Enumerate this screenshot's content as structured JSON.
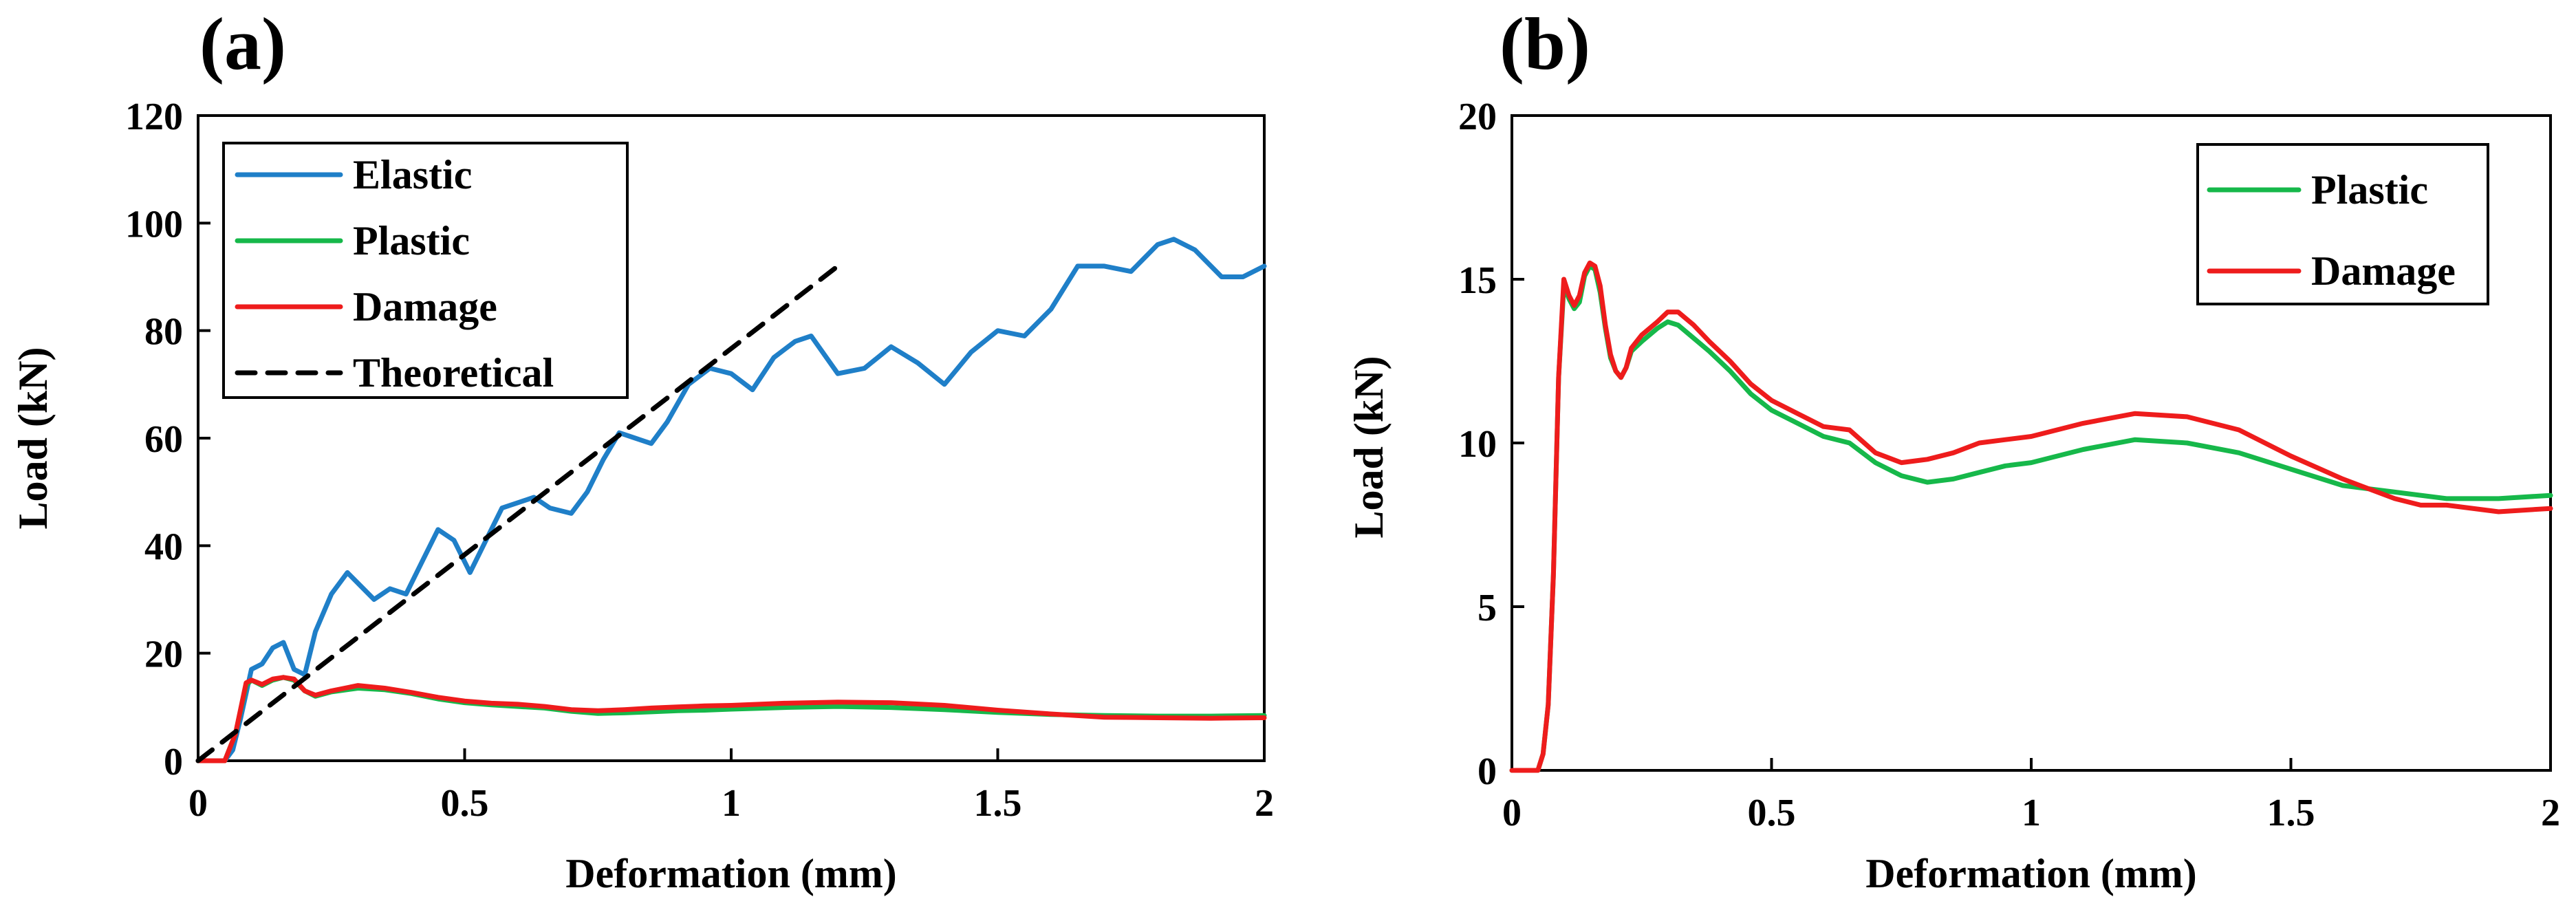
{
  "colors": {
    "elastic": "#1f7fc8",
    "plastic": "#16b84a",
    "damage": "#ee1c1c",
    "theoretical": "#000000"
  },
  "chart_data": [
    {
      "panel": "(a)",
      "type": "line",
      "xlabel": "Deformation (mm)",
      "ylabel": "Load (kN)",
      "xlim": [
        0,
        2
      ],
      "ylim": [
        0,
        120
      ],
      "xticks": [
        0,
        0.5,
        1,
        1.5,
        2
      ],
      "xtick_labels": [
        "0",
        "0.5",
        "1",
        "1.5",
        "2"
      ],
      "yticks": [
        0,
        20,
        40,
        60,
        80,
        100,
        120
      ],
      "ytick_labels": [
        "0",
        "20",
        "40",
        "60",
        "80",
        "100",
        "120"
      ],
      "legend_position": "top-left",
      "series": [
        {
          "name": "Elastic",
          "color_key": "elastic",
          "dash": false,
          "x": [
            0,
            0.05,
            0.065,
            0.08,
            0.1,
            0.12,
            0.14,
            0.16,
            0.18,
            0.2,
            0.22,
            0.25,
            0.28,
            0.3,
            0.33,
            0.36,
            0.39,
            0.42,
            0.45,
            0.48,
            0.51,
            0.54,
            0.57,
            0.6,
            0.63,
            0.66,
            0.7,
            0.73,
            0.76,
            0.79,
            0.82,
            0.85,
            0.88,
            0.92,
            0.96,
            1.0,
            1.04,
            1.08,
            1.12,
            1.15,
            1.2,
            1.25,
            1.3,
            1.35,
            1.4,
            1.45,
            1.5,
            1.55,
            1.6,
            1.65,
            1.7,
            1.75,
            1.8,
            1.83,
            1.87,
            1.92,
            1.96,
            2.0
          ],
          "y": [
            0,
            0,
            2,
            8,
            17,
            18,
            21,
            22,
            17,
            16,
            24,
            31,
            35,
            33,
            30,
            32,
            31,
            37,
            43,
            41,
            35,
            41,
            47,
            48,
            49,
            47,
            46,
            50,
            56,
            61,
            60,
            59,
            63,
            70,
            73,
            72,
            69,
            75,
            78,
            79,
            72,
            73,
            77,
            74,
            70,
            76,
            80,
            79,
            84,
            92,
            92,
            91,
            96,
            97,
            95,
            90,
            90,
            92
          ]
        },
        {
          "name": "Plastic",
          "color_key": "plastic",
          "dash": false,
          "x": [
            0,
            0.05,
            0.07,
            0.09,
            0.1,
            0.12,
            0.14,
            0.16,
            0.18,
            0.2,
            0.22,
            0.25,
            0.3,
            0.35,
            0.4,
            0.45,
            0.5,
            0.55,
            0.6,
            0.65,
            0.7,
            0.75,
            0.8,
            0.85,
            0.9,
            0.95,
            1.0,
            1.1,
            1.2,
            1.3,
            1.4,
            1.5,
            1.6,
            1.7,
            1.8,
            1.9,
            2.0
          ],
          "y": [
            0,
            0,
            5,
            14,
            15,
            14,
            15,
            15.5,
            15,
            13,
            12,
            12.8,
            13.5,
            13.2,
            12.5,
            11.5,
            10.8,
            10.4,
            10.1,
            9.8,
            9.2,
            8.8,
            8.9,
            9.1,
            9.3,
            9.4,
            9.6,
            9.9,
            10.1,
            9.9,
            9.5,
            9.0,
            8.6,
            8.4,
            8.3,
            8.3,
            8.4
          ]
        },
        {
          "name": "Damage",
          "color_key": "damage",
          "dash": false,
          "x": [
            0,
            0.05,
            0.07,
            0.09,
            0.1,
            0.12,
            0.14,
            0.16,
            0.18,
            0.2,
            0.22,
            0.25,
            0.3,
            0.35,
            0.4,
            0.45,
            0.5,
            0.55,
            0.6,
            0.65,
            0.7,
            0.75,
            0.8,
            0.85,
            0.9,
            0.95,
            1.0,
            1.1,
            1.2,
            1.3,
            1.4,
            1.5,
            1.6,
            1.7,
            1.8,
            1.9,
            2.0
          ],
          "y": [
            0,
            0,
            5,
            14.5,
            15,
            14.2,
            15.2,
            15.5,
            15.2,
            13,
            12.2,
            13,
            14,
            13.5,
            12.7,
            11.8,
            11.1,
            10.7,
            10.5,
            10.1,
            9.5,
            9.3,
            9.5,
            9.8,
            10.0,
            10.2,
            10.3,
            10.7,
            10.9,
            10.8,
            10.3,
            9.4,
            8.7,
            8.1,
            8.0,
            7.9,
            8.0
          ]
        },
        {
          "name": "Theoretical",
          "color_key": "theoretical",
          "dash": true,
          "x": [
            0,
            1.2
          ],
          "y": [
            0,
            92
          ]
        }
      ]
    },
    {
      "panel": "(b)",
      "type": "line",
      "xlabel": "Deformation (mm)",
      "ylabel": "Load (kN)",
      "xlim": [
        0,
        2
      ],
      "ylim": [
        0,
        20
      ],
      "xticks": [
        0,
        0.5,
        1,
        1.5,
        2
      ],
      "xtick_labels": [
        "0",
        "0.5",
        "1",
        "1.5",
        "2"
      ],
      "yticks": [
        0,
        5,
        10,
        15,
        20
      ],
      "ytick_labels": [
        "0",
        "5",
        "10",
        "15",
        "20"
      ],
      "legend_position": "top-right",
      "series": [
        {
          "name": "Plastic",
          "color_key": "plastic",
          "dash": false,
          "x": [
            0,
            0.05,
            0.06,
            0.07,
            0.08,
            0.09,
            0.1,
            0.11,
            0.12,
            0.13,
            0.14,
            0.15,
            0.16,
            0.17,
            0.18,
            0.19,
            0.2,
            0.21,
            0.22,
            0.23,
            0.25,
            0.28,
            0.3,
            0.32,
            0.35,
            0.38,
            0.42,
            0.46,
            0.5,
            0.55,
            0.6,
            0.65,
            0.7,
            0.75,
            0.8,
            0.85,
            0.9,
            0.95,
            1.0,
            1.1,
            1.2,
            1.3,
            1.4,
            1.5,
            1.6,
            1.7,
            1.8,
            1.9,
            2.0
          ],
          "y": [
            0,
            0,
            0.5,
            2,
            6,
            12,
            14.8,
            14.4,
            14.1,
            14.3,
            15.1,
            15.4,
            15.3,
            14.6,
            13.5,
            12.6,
            12.2,
            12.0,
            12.3,
            12.8,
            13.1,
            13.5,
            13.7,
            13.6,
            13.2,
            12.8,
            12.2,
            11.5,
            11.0,
            10.6,
            10.2,
            10.0,
            9.4,
            9.0,
            8.8,
            8.9,
            9.1,
            9.3,
            9.4,
            9.8,
            10.1,
            10.0,
            9.7,
            9.2,
            8.7,
            8.5,
            8.3,
            8.3,
            8.4
          ]
        },
        {
          "name": "Damage",
          "color_key": "damage",
          "dash": false,
          "x": [
            0,
            0.05,
            0.06,
            0.07,
            0.08,
            0.09,
            0.1,
            0.11,
            0.12,
            0.13,
            0.14,
            0.15,
            0.16,
            0.17,
            0.18,
            0.19,
            0.2,
            0.21,
            0.22,
            0.23,
            0.25,
            0.28,
            0.3,
            0.32,
            0.35,
            0.38,
            0.42,
            0.46,
            0.5,
            0.55,
            0.6,
            0.65,
            0.7,
            0.75,
            0.8,
            0.85,
            0.9,
            0.95,
            1.0,
            1.1,
            1.2,
            1.3,
            1.4,
            1.5,
            1.6,
            1.7,
            1.75,
            1.8,
            1.9,
            2.0
          ],
          "y": [
            0,
            0,
            0.5,
            2,
            6,
            12,
            15.0,
            14.5,
            14.2,
            14.5,
            15.2,
            15.5,
            15.4,
            14.8,
            13.6,
            12.7,
            12.2,
            12.0,
            12.3,
            12.9,
            13.3,
            13.7,
            14.0,
            14.0,
            13.6,
            13.1,
            12.5,
            11.8,
            11.3,
            10.9,
            10.5,
            10.4,
            9.7,
            9.4,
            9.5,
            9.7,
            10.0,
            10.1,
            10.2,
            10.6,
            10.9,
            10.8,
            10.4,
            9.6,
            8.9,
            8.3,
            8.1,
            8.1,
            7.9,
            8.0
          ]
        }
      ]
    }
  ]
}
